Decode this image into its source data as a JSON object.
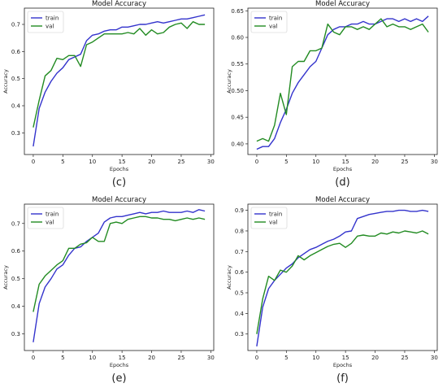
{
  "chart_data": [
    {
      "type": "line",
      "caption": "(c)",
      "title": "Model Accuracy",
      "xlabel": "Epochs",
      "ylabel": "Accuracy",
      "xlim": [
        -1.5,
        30.5
      ],
      "ylim": [
        0.22,
        0.76
      ],
      "xticks": [
        0,
        5,
        10,
        15,
        20,
        25,
        30
      ],
      "yticks": [
        0.3,
        0.4,
        0.5,
        0.6,
        0.7
      ],
      "legend": "top-left",
      "x": [
        0,
        1,
        2,
        3,
        4,
        5,
        6,
        7,
        8,
        9,
        10,
        11,
        12,
        13,
        14,
        15,
        16,
        17,
        18,
        19,
        20,
        21,
        22,
        23,
        24,
        25,
        26,
        27,
        28,
        29
      ],
      "series": [
        {
          "name": "train",
          "color": "#3333cc",
          "values": [
            0.25,
            0.39,
            0.45,
            0.49,
            0.52,
            0.54,
            0.57,
            0.58,
            0.59,
            0.64,
            0.66,
            0.665,
            0.675,
            0.68,
            0.68,
            0.69,
            0.69,
            0.695,
            0.7,
            0.7,
            0.705,
            0.71,
            0.705,
            0.71,
            0.715,
            0.72,
            0.72,
            0.725,
            0.73,
            0.735
          ]
        },
        {
          "name": "val",
          "color": "#228b22",
          "values": [
            0.32,
            0.42,
            0.51,
            0.53,
            0.575,
            0.57,
            0.585,
            0.585,
            0.545,
            0.625,
            0.635,
            0.65,
            0.665,
            0.665,
            0.665,
            0.665,
            0.67,
            0.665,
            0.685,
            0.66,
            0.68,
            0.665,
            0.67,
            0.69,
            0.7,
            0.705,
            0.685,
            0.71,
            0.7,
            0.7
          ]
        }
      ]
    },
    {
      "type": "line",
      "caption": "(d)",
      "title": "Model Accuracy",
      "xlabel": "Epochs",
      "ylabel": "Accuracy",
      "xlim": [
        -1.5,
        30.5
      ],
      "ylim": [
        0.38,
        0.655
      ],
      "xticks": [
        0,
        5,
        10,
        15,
        20,
        25,
        30
      ],
      "yticks": [
        0.4,
        0.45,
        0.5,
        0.55,
        0.6,
        0.65
      ],
      "legend": "top-left",
      "x": [
        0,
        1,
        2,
        3,
        4,
        5,
        6,
        7,
        8,
        9,
        10,
        11,
        12,
        13,
        14,
        15,
        16,
        17,
        18,
        19,
        20,
        21,
        22,
        23,
        24,
        25,
        26,
        27,
        28,
        29
      ],
      "series": [
        {
          "name": "train",
          "color": "#3333cc",
          "values": [
            0.39,
            0.395,
            0.395,
            0.41,
            0.44,
            0.465,
            0.495,
            0.515,
            0.53,
            0.545,
            0.555,
            0.58,
            0.605,
            0.615,
            0.62,
            0.62,
            0.625,
            0.625,
            0.63,
            0.625,
            0.625,
            0.63,
            0.635,
            0.635,
            0.63,
            0.635,
            0.63,
            0.635,
            0.63,
            0.64
          ]
        },
        {
          "name": "val",
          "color": "#228b22",
          "values": [
            0.405,
            0.41,
            0.405,
            0.435,
            0.495,
            0.455,
            0.545,
            0.555,
            0.555,
            0.575,
            0.575,
            0.58,
            0.625,
            0.61,
            0.605,
            0.62,
            0.62,
            0.615,
            0.62,
            0.615,
            0.625,
            0.635,
            0.62,
            0.625,
            0.62,
            0.62,
            0.615,
            0.62,
            0.625,
            0.61
          ]
        }
      ]
    },
    {
      "type": "line",
      "caption": "(e)",
      "title": "Model Accuracy",
      "xlabel": "Epochs",
      "ylabel": "Accuracy",
      "xlim": [
        -1.5,
        30.5
      ],
      "ylim": [
        0.24,
        0.77
      ],
      "xticks": [
        0,
        5,
        10,
        15,
        20,
        25,
        30
      ],
      "yticks": [
        0.3,
        0.4,
        0.5,
        0.6,
        0.7
      ],
      "legend": "top-left",
      "x": [
        0,
        1,
        2,
        3,
        4,
        5,
        6,
        7,
        8,
        9,
        10,
        11,
        12,
        13,
        14,
        15,
        16,
        17,
        18,
        19,
        20,
        21,
        22,
        23,
        24,
        25,
        26,
        27,
        28,
        29
      ],
      "series": [
        {
          "name": "train",
          "color": "#3333cc",
          "values": [
            0.27,
            0.41,
            0.47,
            0.5,
            0.535,
            0.55,
            0.585,
            0.61,
            0.615,
            0.635,
            0.65,
            0.665,
            0.705,
            0.72,
            0.725,
            0.725,
            0.73,
            0.735,
            0.74,
            0.735,
            0.74,
            0.74,
            0.745,
            0.74,
            0.74,
            0.74,
            0.745,
            0.74,
            0.75,
            0.745
          ]
        },
        {
          "name": "val",
          "color": "#228b22",
          "values": [
            0.38,
            0.48,
            0.51,
            0.53,
            0.55,
            0.565,
            0.61,
            0.61,
            0.625,
            0.63,
            0.65,
            0.635,
            0.635,
            0.7,
            0.705,
            0.7,
            0.715,
            0.72,
            0.725,
            0.725,
            0.72,
            0.72,
            0.715,
            0.715,
            0.71,
            0.715,
            0.72,
            0.715,
            0.72,
            0.715
          ]
        }
      ]
    },
    {
      "type": "line",
      "caption": "(f)",
      "title": "Model Accuracy",
      "xlabel": "Epochs",
      "ylabel": "Accuracy",
      "xlim": [
        -1.5,
        30.5
      ],
      "ylim": [
        0.22,
        0.93
      ],
      "xticks": [
        0,
        5,
        10,
        15,
        20,
        25,
        30
      ],
      "yticks": [
        0.3,
        0.4,
        0.5,
        0.6,
        0.7,
        0.8,
        0.9
      ],
      "legend": "top-left",
      "x": [
        0,
        1,
        2,
        3,
        4,
        5,
        6,
        7,
        8,
        9,
        10,
        11,
        12,
        13,
        14,
        15,
        16,
        17,
        18,
        19,
        20,
        21,
        22,
        23,
        24,
        25,
        26,
        27,
        28,
        29
      ],
      "series": [
        {
          "name": "train",
          "color": "#3333cc",
          "values": [
            0.24,
            0.43,
            0.52,
            0.56,
            0.59,
            0.62,
            0.64,
            0.67,
            0.69,
            0.71,
            0.72,
            0.735,
            0.75,
            0.76,
            0.775,
            0.795,
            0.8,
            0.86,
            0.87,
            0.88,
            0.885,
            0.89,
            0.895,
            0.895,
            0.9,
            0.9,
            0.895,
            0.895,
            0.9,
            0.895
          ]
        },
        {
          "name": "val",
          "color": "#228b22",
          "values": [
            0.3,
            0.47,
            0.58,
            0.56,
            0.61,
            0.6,
            0.63,
            0.68,
            0.66,
            0.68,
            0.695,
            0.71,
            0.725,
            0.735,
            0.74,
            0.72,
            0.74,
            0.775,
            0.78,
            0.775,
            0.775,
            0.79,
            0.785,
            0.795,
            0.79,
            0.8,
            0.795,
            0.79,
            0.8,
            0.785
          ]
        }
      ]
    }
  ]
}
